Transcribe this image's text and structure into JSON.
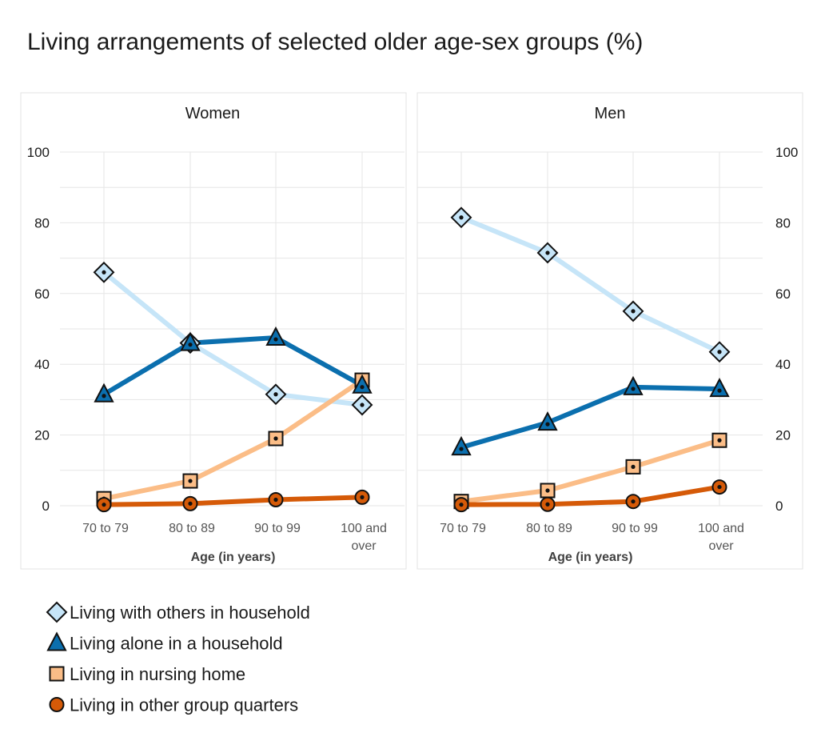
{
  "title": "Living arrangements of selected older age-sex groups (%)",
  "colors": {
    "others": "#c6e5f8",
    "alone": "#0b6fae",
    "nursing": "#fbbd87",
    "group": "#d55a08"
  },
  "chart_data": [
    {
      "type": "line",
      "panel_title": "Women",
      "categories": [
        [
          "70 to 79"
        ],
        [
          "80 to 89"
        ],
        [
          "90 to 99"
        ],
        [
          "100 and",
          "over"
        ]
      ],
      "xlabel": "Age (in years)",
      "ylim": [
        0,
        100
      ],
      "yticks": [
        "0",
        "20",
        "40",
        "60",
        "80",
        "100"
      ],
      "ytick_values": [
        0,
        20,
        40,
        60,
        80,
        100
      ],
      "y_axis_side": "left",
      "series": [
        {
          "key": "others",
          "name": "Living with others in household",
          "values": [
            66,
            46,
            31.5,
            28.5
          ]
        },
        {
          "key": "alone",
          "name": "Living alone in a household",
          "values": [
            31.5,
            46,
            47.5,
            34
          ]
        },
        {
          "key": "nursing",
          "name": "Living in nursing home",
          "values": [
            2,
            7,
            19,
            35.5
          ]
        },
        {
          "key": "group",
          "name": "Living in other group quarters",
          "values": [
            0.3,
            0.6,
            1.7,
            2.4
          ]
        }
      ]
    },
    {
      "type": "line",
      "panel_title": "Men",
      "categories": [
        [
          "70 to 79"
        ],
        [
          "80 to 89"
        ],
        [
          "90 to 99"
        ],
        [
          "100 and",
          "over"
        ]
      ],
      "xlabel": "Age (in years)",
      "ylim": [
        0,
        100
      ],
      "yticks": [
        "0",
        "20",
        "40",
        "60",
        "80",
        "100"
      ],
      "ytick_values": [
        0,
        20,
        40,
        60,
        80,
        100
      ],
      "y_axis_side": "right",
      "series": [
        {
          "key": "others",
          "name": "Living with others in household",
          "values": [
            81.5,
            71.5,
            55,
            43.5
          ]
        },
        {
          "key": "alone",
          "name": "Living alone in a household",
          "values": [
            16.5,
            23.5,
            33.5,
            33
          ]
        },
        {
          "key": "nursing",
          "name": "Living in nursing home",
          "values": [
            1.2,
            4.3,
            11,
            18.5
          ]
        },
        {
          "key": "group",
          "name": "Living in other group quarters",
          "values": [
            0.3,
            0.4,
            1.2,
            5.3
          ]
        }
      ]
    }
  ],
  "legend": {
    "placement": "bottom-left",
    "items": [
      {
        "key": "others",
        "marker": "diamond",
        "label": "Living with others in household"
      },
      {
        "key": "alone",
        "marker": "triangle",
        "label": "Living alone in a household"
      },
      {
        "key": "nursing",
        "marker": "square",
        "label": "Living in nursing home"
      },
      {
        "key": "group",
        "marker": "circle",
        "label": "Living in other group quarters"
      }
    ]
  }
}
